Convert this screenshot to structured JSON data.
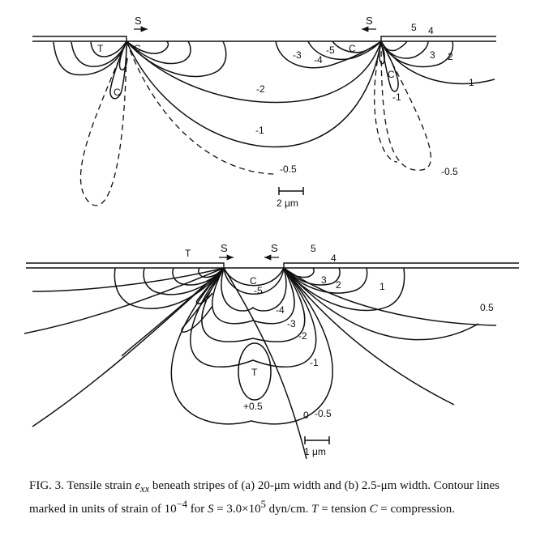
{
  "panel_a": {
    "stress_left": "S",
    "stress_right": "S",
    "tension_label": "T",
    "compression_labels": [
      "C",
      "C",
      "C",
      "C"
    ],
    "contour_labels": {
      "m2": "-2",
      "m1_mid": "-1",
      "m05_mid": "-0.5",
      "m3": "-3",
      "m4": "-4",
      "m5": "-5",
      "p5": "5",
      "p4": "4",
      "p3": "3",
      "p2": "2",
      "p1": "1",
      "m1_right": "-1",
      "m05_right": "-0.5"
    },
    "scale_label": "2 μm"
  },
  "panel_b": {
    "stress_left": "S",
    "stress_right": "S",
    "tension_top": "T",
    "tension_center": "T",
    "compression_label": "C",
    "contour_labels": {
      "m5": "-5",
      "m4": "-4",
      "m3": "-3",
      "m2": "-2",
      "m1": "-1",
      "m05": "-0.5",
      "p05": "+0.5",
      "zero": "0",
      "p5": "5",
      "p4": "4",
      "p3": "3",
      "p2": "2",
      "p1": "1",
      "p05_right": "0.5"
    },
    "scale_label": "1 μm"
  },
  "caption": {
    "fig": "FIG. 3.",
    "text_1": " Tensile strain ",
    "e": "e",
    "sub": "xx",
    "text_2": " beneath stripes of (a) 20-μm width and (b) 2.5-μm width. Contour lines marked in units of strain of 10",
    "exp1": "−4",
    "text_3": " for ",
    "S_var": "S",
    "text_4": " = 3.0×10",
    "exp2": "5",
    "text_5": " dyn/cm. ",
    "T_var": "T",
    "text_6": " = tension ",
    "C_var": "C",
    "text_7": " = compression."
  }
}
